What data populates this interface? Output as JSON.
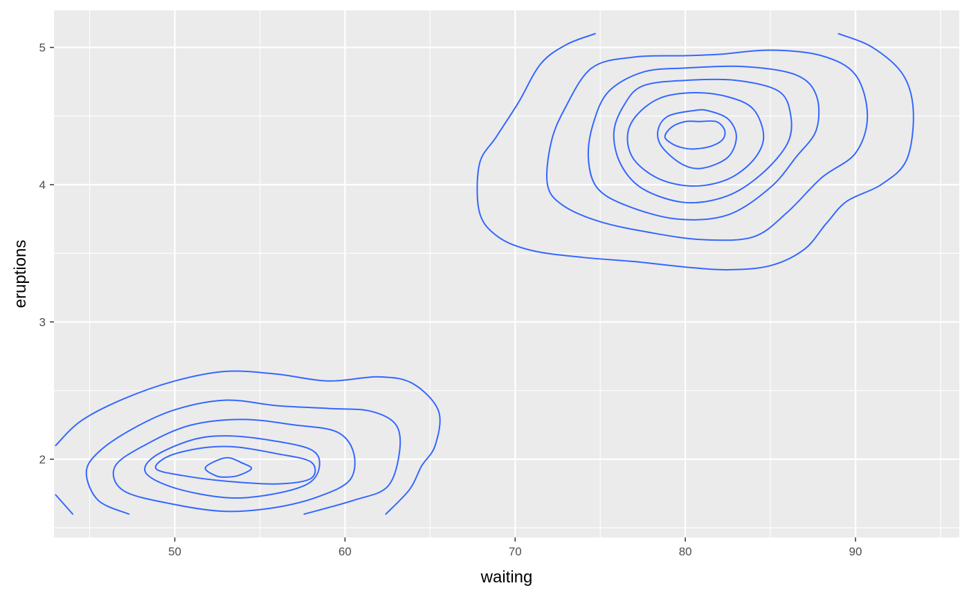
{
  "chart_data": {
    "type": "contour",
    "xlabel": "waiting",
    "ylabel": "eruptions",
    "xlim": [
      42.9,
      96.1
    ],
    "ylim": [
      1.43,
      5.27
    ],
    "x_ticks": [
      50,
      60,
      70,
      80,
      90
    ],
    "x_minor": [
      45,
      55,
      65,
      75,
      85,
      95
    ],
    "y_ticks": [
      2,
      3,
      4,
      5
    ],
    "y_minor": [
      1.5,
      2.5,
      3.5,
      4.5
    ],
    "grid": true,
    "colors": {
      "panel_bg": "#ebebeb",
      "grid": "#ffffff",
      "line": "#3366ff",
      "tick": "#333333"
    },
    "series": [
      {
        "group": "upper",
        "points": [
          [
            74.7,
            5.1
          ],
          [
            73.0,
            5.02
          ],
          [
            71.5,
            4.88
          ],
          [
            70.2,
            4.6
          ],
          [
            68.9,
            4.35
          ],
          [
            67.9,
            4.15
          ],
          [
            67.9,
            3.8
          ],
          [
            69.0,
            3.62
          ],
          [
            71.0,
            3.52
          ],
          [
            74.0,
            3.47
          ],
          [
            77.0,
            3.44
          ],
          [
            80.0,
            3.4
          ],
          [
            82.5,
            3.38
          ],
          [
            85.0,
            3.41
          ],
          [
            87.0,
            3.53
          ],
          [
            88.3,
            3.72
          ],
          [
            89.5,
            3.88
          ],
          [
            91.5,
            4.0
          ],
          [
            93.0,
            4.18
          ],
          [
            93.4,
            4.53
          ],
          [
            92.8,
            4.8
          ],
          [
            91.0,
            5.0
          ],
          [
            89.0,
            5.1
          ]
        ]
      },
      {
        "group": "upper",
        "points": [
          [
            80.0,
            4.94
          ],
          [
            77.0,
            4.93
          ],
          [
            74.5,
            4.85
          ],
          [
            72.9,
            4.55
          ],
          [
            72.1,
            4.3
          ],
          [
            71.9,
            4.0
          ],
          [
            72.8,
            3.85
          ],
          [
            75.0,
            3.73
          ],
          [
            78.0,
            3.65
          ],
          [
            81.0,
            3.6
          ],
          [
            84.0,
            3.62
          ],
          [
            86.0,
            3.8
          ],
          [
            88.0,
            4.05
          ],
          [
            90.0,
            4.23
          ],
          [
            90.7,
            4.5
          ],
          [
            90.0,
            4.8
          ],
          [
            88.0,
            4.94
          ],
          [
            85.0,
            4.98
          ],
          [
            82.0,
            4.95
          ],
          [
            80.0,
            4.94
          ]
        ]
      },
      {
        "group": "upper",
        "points": [
          [
            80.0,
            4.85
          ],
          [
            77.5,
            4.82
          ],
          [
            75.5,
            4.68
          ],
          [
            74.6,
            4.45
          ],
          [
            74.3,
            4.2
          ],
          [
            74.8,
            3.98
          ],
          [
            76.5,
            3.85
          ],
          [
            79.5,
            3.75
          ],
          [
            82.5,
            3.78
          ],
          [
            85.0,
            3.98
          ],
          [
            86.5,
            4.2
          ],
          [
            87.7,
            4.4
          ],
          [
            87.7,
            4.65
          ],
          [
            86.5,
            4.8
          ],
          [
            83.5,
            4.86
          ],
          [
            80.0,
            4.85
          ]
        ]
      },
      {
        "group": "upper",
        "points": [
          [
            80.0,
            4.76
          ],
          [
            77.5,
            4.72
          ],
          [
            76.4,
            4.58
          ],
          [
            75.8,
            4.38
          ],
          [
            76.2,
            4.15
          ],
          [
            77.5,
            3.97
          ],
          [
            80.0,
            3.87
          ],
          [
            82.5,
            3.92
          ],
          [
            84.5,
            4.08
          ],
          [
            86.0,
            4.3
          ],
          [
            86.2,
            4.5
          ],
          [
            85.5,
            4.68
          ],
          [
            83.0,
            4.76
          ],
          [
            80.0,
            4.76
          ]
        ]
      },
      {
        "group": "upper",
        "points": [
          [
            80.5,
            4.67
          ],
          [
            78.5,
            4.63
          ],
          [
            77.1,
            4.5
          ],
          [
            76.6,
            4.35
          ],
          [
            77.0,
            4.18
          ],
          [
            78.5,
            4.04
          ],
          [
            80.5,
            3.99
          ],
          [
            82.5,
            4.04
          ],
          [
            84.0,
            4.18
          ],
          [
            84.6,
            4.35
          ],
          [
            84.0,
            4.55
          ],
          [
            82.5,
            4.64
          ],
          [
            80.5,
            4.67
          ]
        ]
      },
      {
        "group": "upper",
        "points": [
          [
            80.5,
            4.54
          ],
          [
            79.0,
            4.5
          ],
          [
            78.4,
            4.4
          ],
          [
            78.6,
            4.28
          ],
          [
            79.8,
            4.15
          ],
          [
            81.0,
            4.12
          ],
          [
            82.5,
            4.2
          ],
          [
            83.0,
            4.35
          ],
          [
            82.5,
            4.48
          ],
          [
            81.3,
            4.54
          ],
          [
            80.5,
            4.54
          ]
        ]
      },
      {
        "group": "upper",
        "points": [
          [
            80.0,
            4.46
          ],
          [
            79.2,
            4.42
          ],
          [
            78.8,
            4.35
          ],
          [
            79.2,
            4.3
          ],
          [
            79.8,
            4.27
          ],
          [
            80.5,
            4.26
          ],
          [
            81.5,
            4.28
          ],
          [
            82.2,
            4.33
          ],
          [
            82.3,
            4.4
          ],
          [
            81.8,
            4.46
          ],
          [
            80.8,
            4.46
          ],
          [
            80.0,
            4.46
          ]
        ]
      },
      {
        "group": "lower",
        "points": [
          [
            43.0,
            2.1
          ],
          [
            44.5,
            2.28
          ],
          [
            47.0,
            2.44
          ],
          [
            50.0,
            2.57
          ],
          [
            53.0,
            2.64
          ],
          [
            56.0,
            2.62
          ],
          [
            59.0,
            2.57
          ],
          [
            62.0,
            2.6
          ],
          [
            64.0,
            2.55
          ],
          [
            65.5,
            2.35
          ],
          [
            65.3,
            2.1
          ],
          [
            64.5,
            1.95
          ],
          [
            63.8,
            1.78
          ],
          [
            62.4,
            1.6
          ]
        ]
      },
      {
        "group": "lower",
        "points": [
          [
            47.3,
            1.6
          ],
          [
            45.5,
            1.7
          ],
          [
            44.8,
            1.9
          ],
          [
            45.5,
            2.05
          ],
          [
            47.5,
            2.22
          ],
          [
            50.0,
            2.36
          ],
          [
            53.0,
            2.43
          ],
          [
            56.0,
            2.39
          ],
          [
            59.0,
            2.37
          ],
          [
            61.5,
            2.35
          ],
          [
            63.0,
            2.25
          ],
          [
            63.2,
            2.05
          ],
          [
            62.5,
            1.8
          ],
          [
            60.5,
            1.7
          ],
          [
            57.6,
            1.6
          ]
        ]
      },
      {
        "group": "lower",
        "points": [
          [
            53.0,
            1.62
          ],
          [
            50.0,
            1.67
          ],
          [
            47.0,
            1.77
          ],
          [
            46.5,
            1.95
          ],
          [
            48.5,
            2.12
          ],
          [
            51.0,
            2.25
          ],
          [
            54.0,
            2.29
          ],
          [
            57.0,
            2.25
          ],
          [
            59.5,
            2.2
          ],
          [
            60.5,
            2.05
          ],
          [
            60.3,
            1.85
          ],
          [
            58.5,
            1.73
          ],
          [
            56.0,
            1.65
          ],
          [
            53.0,
            1.62
          ]
        ]
      },
      {
        "group": "lower",
        "points": [
          [
            53.0,
            1.72
          ],
          [
            50.0,
            1.79
          ],
          [
            48.3,
            1.9
          ],
          [
            48.8,
            2.02
          ],
          [
            51.0,
            2.14
          ],
          [
            53.0,
            2.17
          ],
          [
            55.5,
            2.14
          ],
          [
            58.0,
            2.07
          ],
          [
            58.5,
            1.95
          ],
          [
            57.8,
            1.82
          ],
          [
            55.5,
            1.74
          ],
          [
            53.0,
            1.72
          ]
        ]
      },
      {
        "group": "lower",
        "points": [
          [
            53.0,
            1.84
          ],
          [
            50.5,
            1.88
          ],
          [
            48.9,
            1.93
          ],
          [
            49.6,
            2.02
          ],
          [
            51.5,
            2.08
          ],
          [
            53.5,
            2.09
          ],
          [
            56.0,
            2.04
          ],
          [
            58.0,
            1.98
          ],
          [
            58.0,
            1.86
          ],
          [
            56.0,
            1.82
          ],
          [
            53.0,
            1.84
          ]
        ]
      },
      {
        "group": "lower",
        "points": [
          [
            53.0,
            2.01
          ],
          [
            51.8,
            1.94
          ],
          [
            52.4,
            1.88
          ],
          [
            53.0,
            1.87
          ],
          [
            53.7,
            1.88
          ],
          [
            54.5,
            1.93
          ],
          [
            54.0,
            1.97
          ],
          [
            53.0,
            2.01
          ]
        ]
      },
      {
        "group": "lower",
        "points": [
          [
            43.0,
            1.74
          ],
          [
            43.5,
            1.67
          ],
          [
            44.0,
            1.6
          ]
        ]
      }
    ]
  }
}
